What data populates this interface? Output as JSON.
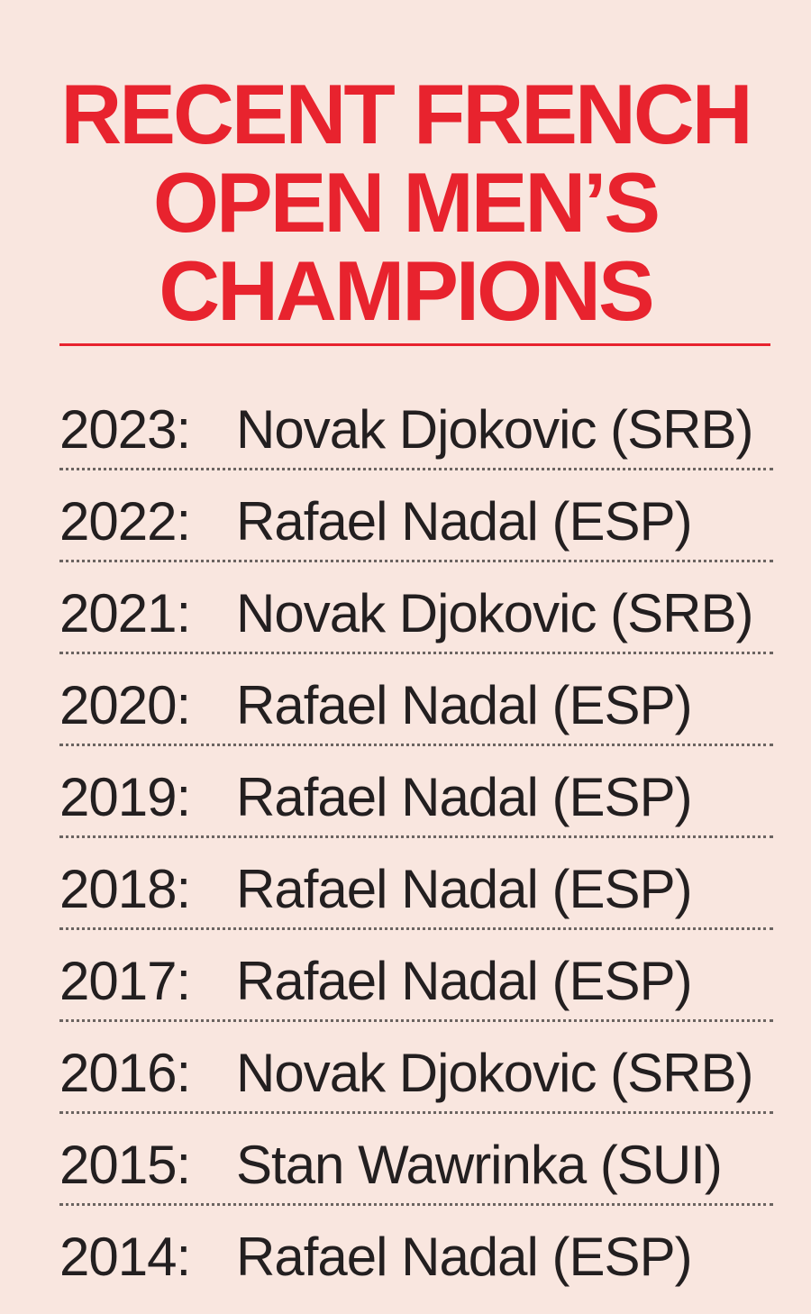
{
  "title_lines": [
    "RECENT FRENCH",
    "OPEN MEN’S",
    "CHAMPIONS"
  ],
  "colors": {
    "accent": "#e8232e",
    "background": "#f9e6df",
    "text": "#231f20"
  },
  "rows": [
    {
      "year": "2023:",
      "champion": "Novak Djokovic (SRB)"
    },
    {
      "year": "2022:",
      "champion": "Rafael Nadal (ESP)"
    },
    {
      "year": "2021:",
      "champion": "Novak Djokovic (SRB)"
    },
    {
      "year": "2020:",
      "champion": "Rafael Nadal (ESP)"
    },
    {
      "year": "2019:",
      "champion": "Rafael Nadal (ESP)"
    },
    {
      "year": "2018:",
      "champion": "Rafael Nadal (ESP)"
    },
    {
      "year": "2017:",
      "champion": "Rafael Nadal (ESP)"
    },
    {
      "year": "2016:",
      "champion": "Novak Djokovic (SRB)"
    },
    {
      "year": "2015:",
      "champion": "Stan Wawrinka (SUI)"
    },
    {
      "year": "2014:",
      "champion": "Rafael Nadal (ESP)"
    }
  ]
}
